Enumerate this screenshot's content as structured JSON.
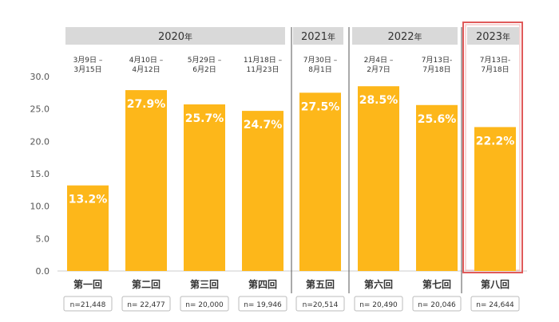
{
  "chart_data": {
    "type": "bar",
    "ylim": [
      0,
      30
    ],
    "yticks": [
      "0.0",
      "5.0",
      "10.0",
      "15.0",
      "20.0",
      "25.0",
      "30.0"
    ],
    "grid": false,
    "year_groups": [
      {
        "year": "2020",
        "suffix": "年"
      },
      {
        "year": "2021",
        "suffix": "年"
      },
      {
        "year": "2022",
        "suffix": "年"
      },
      {
        "year": "2023",
        "suffix": "年",
        "highlighted": true
      }
    ],
    "categories": [
      "第一回",
      "第二回",
      "第三回",
      "第四回",
      "第五回",
      "第六回",
      "第七回",
      "第八回"
    ],
    "values": [
      13.2,
      27.9,
      25.7,
      24.7,
      27.5,
      28.5,
      25.6,
      22.2
    ],
    "value_labels": [
      "13.2%",
      "27.9%",
      "25.7%",
      "24.7%",
      "27.5%",
      "28.5%",
      "25.6%",
      "22.2%"
    ],
    "periods": [
      [
        "3月9日 –",
        "3月15日"
      ],
      [
        "4月10日 –",
        "4月12日"
      ],
      [
        "5月29日 –",
        "6月2日"
      ],
      [
        "11月18日 –",
        "11月23日"
      ],
      [
        "7月30日 –",
        "8月1日"
      ],
      [
        "2月4日 –",
        "2月7日"
      ],
      [
        "7月13日-",
        "7月18日"
      ],
      [
        "7月13日-",
        "7月18日"
      ]
    ],
    "sample_sizes": [
      "n=21,448",
      "n= 22,477",
      "n= 20,000",
      "n= 19,946",
      "n=20,514",
      "n= 20,490",
      "n= 20,046",
      "n= 24,644"
    ],
    "colors": {
      "bar": "#FDB71A",
      "bar_label": "#ffffff",
      "year_header": "#d9d9d9",
      "separator": "#555555",
      "highlight_border": "#e05a5a",
      "axis_text": "#555555"
    }
  }
}
